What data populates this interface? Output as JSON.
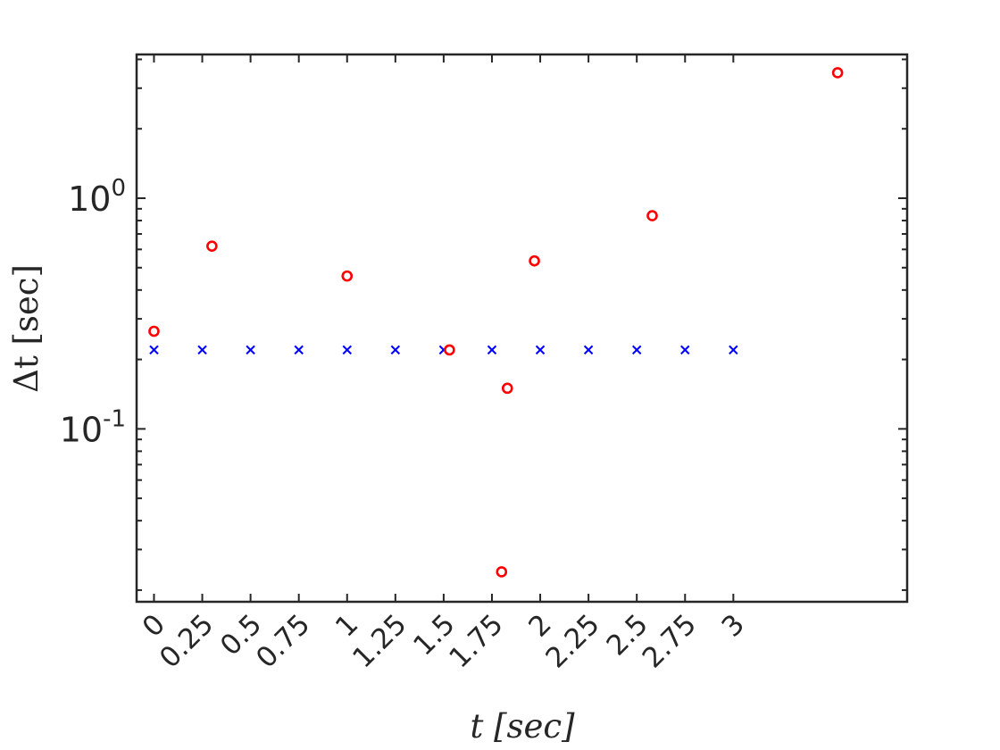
{
  "chart_data": {
    "type": "scatter",
    "title": "",
    "xlabel": "t [sec]",
    "ylabel": "Δt [sec]",
    "xlim": [
      -0.09,
      3.9
    ],
    "ylim": [
      0.0178,
      4.2
    ],
    "yscale": "log",
    "grid": false,
    "legend": "none",
    "x_ticks": [
      0,
      0.25,
      0.5,
      0.75,
      1,
      1.25,
      1.5,
      1.75,
      2,
      2.25,
      2.5,
      2.75,
      3
    ],
    "x_tick_labels": [
      "0",
      "0.25",
      "0.5",
      "0.75",
      "1",
      "1.25",
      "1.5",
      "1.75",
      "2",
      "2.25",
      "2.5",
      "2.75",
      "3"
    ],
    "y_ticks": [
      {
        "value": 1,
        "base": "10",
        "exp": "0"
      },
      {
        "value": 0.1,
        "base": "10",
        "exp": "-1"
      }
    ],
    "series": [
      {
        "marker": "x",
        "color": "#0000ff",
        "x": [
          0,
          0.25,
          0.5,
          0.75,
          1,
          1.25,
          1.5,
          1.75,
          2,
          2.25,
          2.5,
          2.75,
          3
        ],
        "y": [
          0.22,
          0.22,
          0.22,
          0.22,
          0.22,
          0.22,
          0.22,
          0.22,
          0.22,
          0.22,
          0.22,
          0.22,
          0.22
        ]
      },
      {
        "marker": "o",
        "color": "#ff0000",
        "x": [
          0,
          0.3,
          1.0,
          1.53,
          1.8,
          1.83,
          1.97,
          2.58,
          3.54
        ],
        "y": [
          0.265,
          0.62,
          0.46,
          0.22,
          0.024,
          0.15,
          0.535,
          0.84,
          3.5
        ]
      }
    ]
  }
}
